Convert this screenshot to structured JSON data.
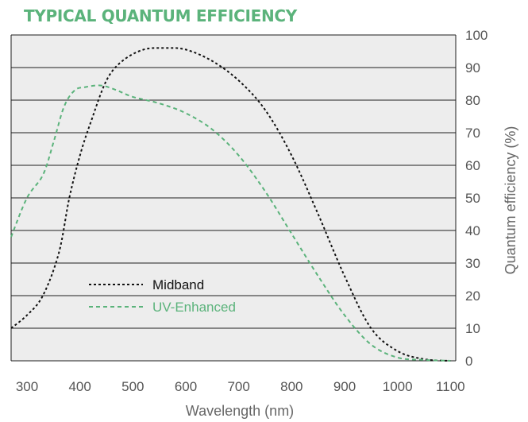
{
  "title": "TYPICAL QUANTUM EFFICIENCY",
  "colors": {
    "title": "#5bb37b",
    "plot_background": "#ededed",
    "grid": "#1e1e1e",
    "midband": "#111111",
    "uv_enhanced": "#5bb37b"
  },
  "chart_data": {
    "type": "line",
    "title": "TYPICAL QUANTUM EFFICIENCY",
    "xlabel": "Wavelength (nm)",
    "ylabel": "Quantum efficiency (%)",
    "xlim": [
      270,
      1110
    ],
    "ylim": [
      0,
      100
    ],
    "x_ticks": [
      "300",
      "400",
      "500",
      "600",
      "700",
      "800",
      "900",
      "1000",
      "1100"
    ],
    "y_ticks": [
      "0",
      "10",
      "20",
      "30",
      "40",
      "50",
      "60",
      "70",
      "80",
      "90",
      "100"
    ],
    "y_axis_side": "right",
    "grid": "horizontal",
    "legend_position": "lower-left",
    "series": [
      {
        "name": "Midband",
        "color": "#111111",
        "line_style": "dotted",
        "x": [
          270,
          300,
          330,
          360,
          380,
          400,
          420,
          450,
          480,
          520,
          560,
          600,
          650,
          700,
          750,
          800,
          850,
          900,
          950,
          1000,
          1050,
          1100
        ],
        "y": [
          10,
          14,
          20,
          33,
          50,
          63,
          73,
          86,
          92,
          95.5,
          96,
          95.5,
          92,
          86,
          77,
          63,
          45,
          26,
          10,
          3,
          0.5,
          0
        ]
      },
      {
        "name": "UV-Enhanced",
        "color": "#5bb37b",
        "line_style": "dashed",
        "x": [
          270,
          300,
          330,
          350,
          370,
          390,
          410,
          440,
          470,
          500,
          550,
          600,
          650,
          700,
          750,
          800,
          850,
          900,
          950,
          1000,
          1050,
          1100
        ],
        "y": [
          38,
          50,
          57,
          67,
          78,
          83,
          84,
          84.5,
          83,
          81,
          79,
          76,
          71,
          63,
          52,
          39,
          26,
          14,
          5,
          1,
          0.3,
          0
        ]
      }
    ]
  }
}
